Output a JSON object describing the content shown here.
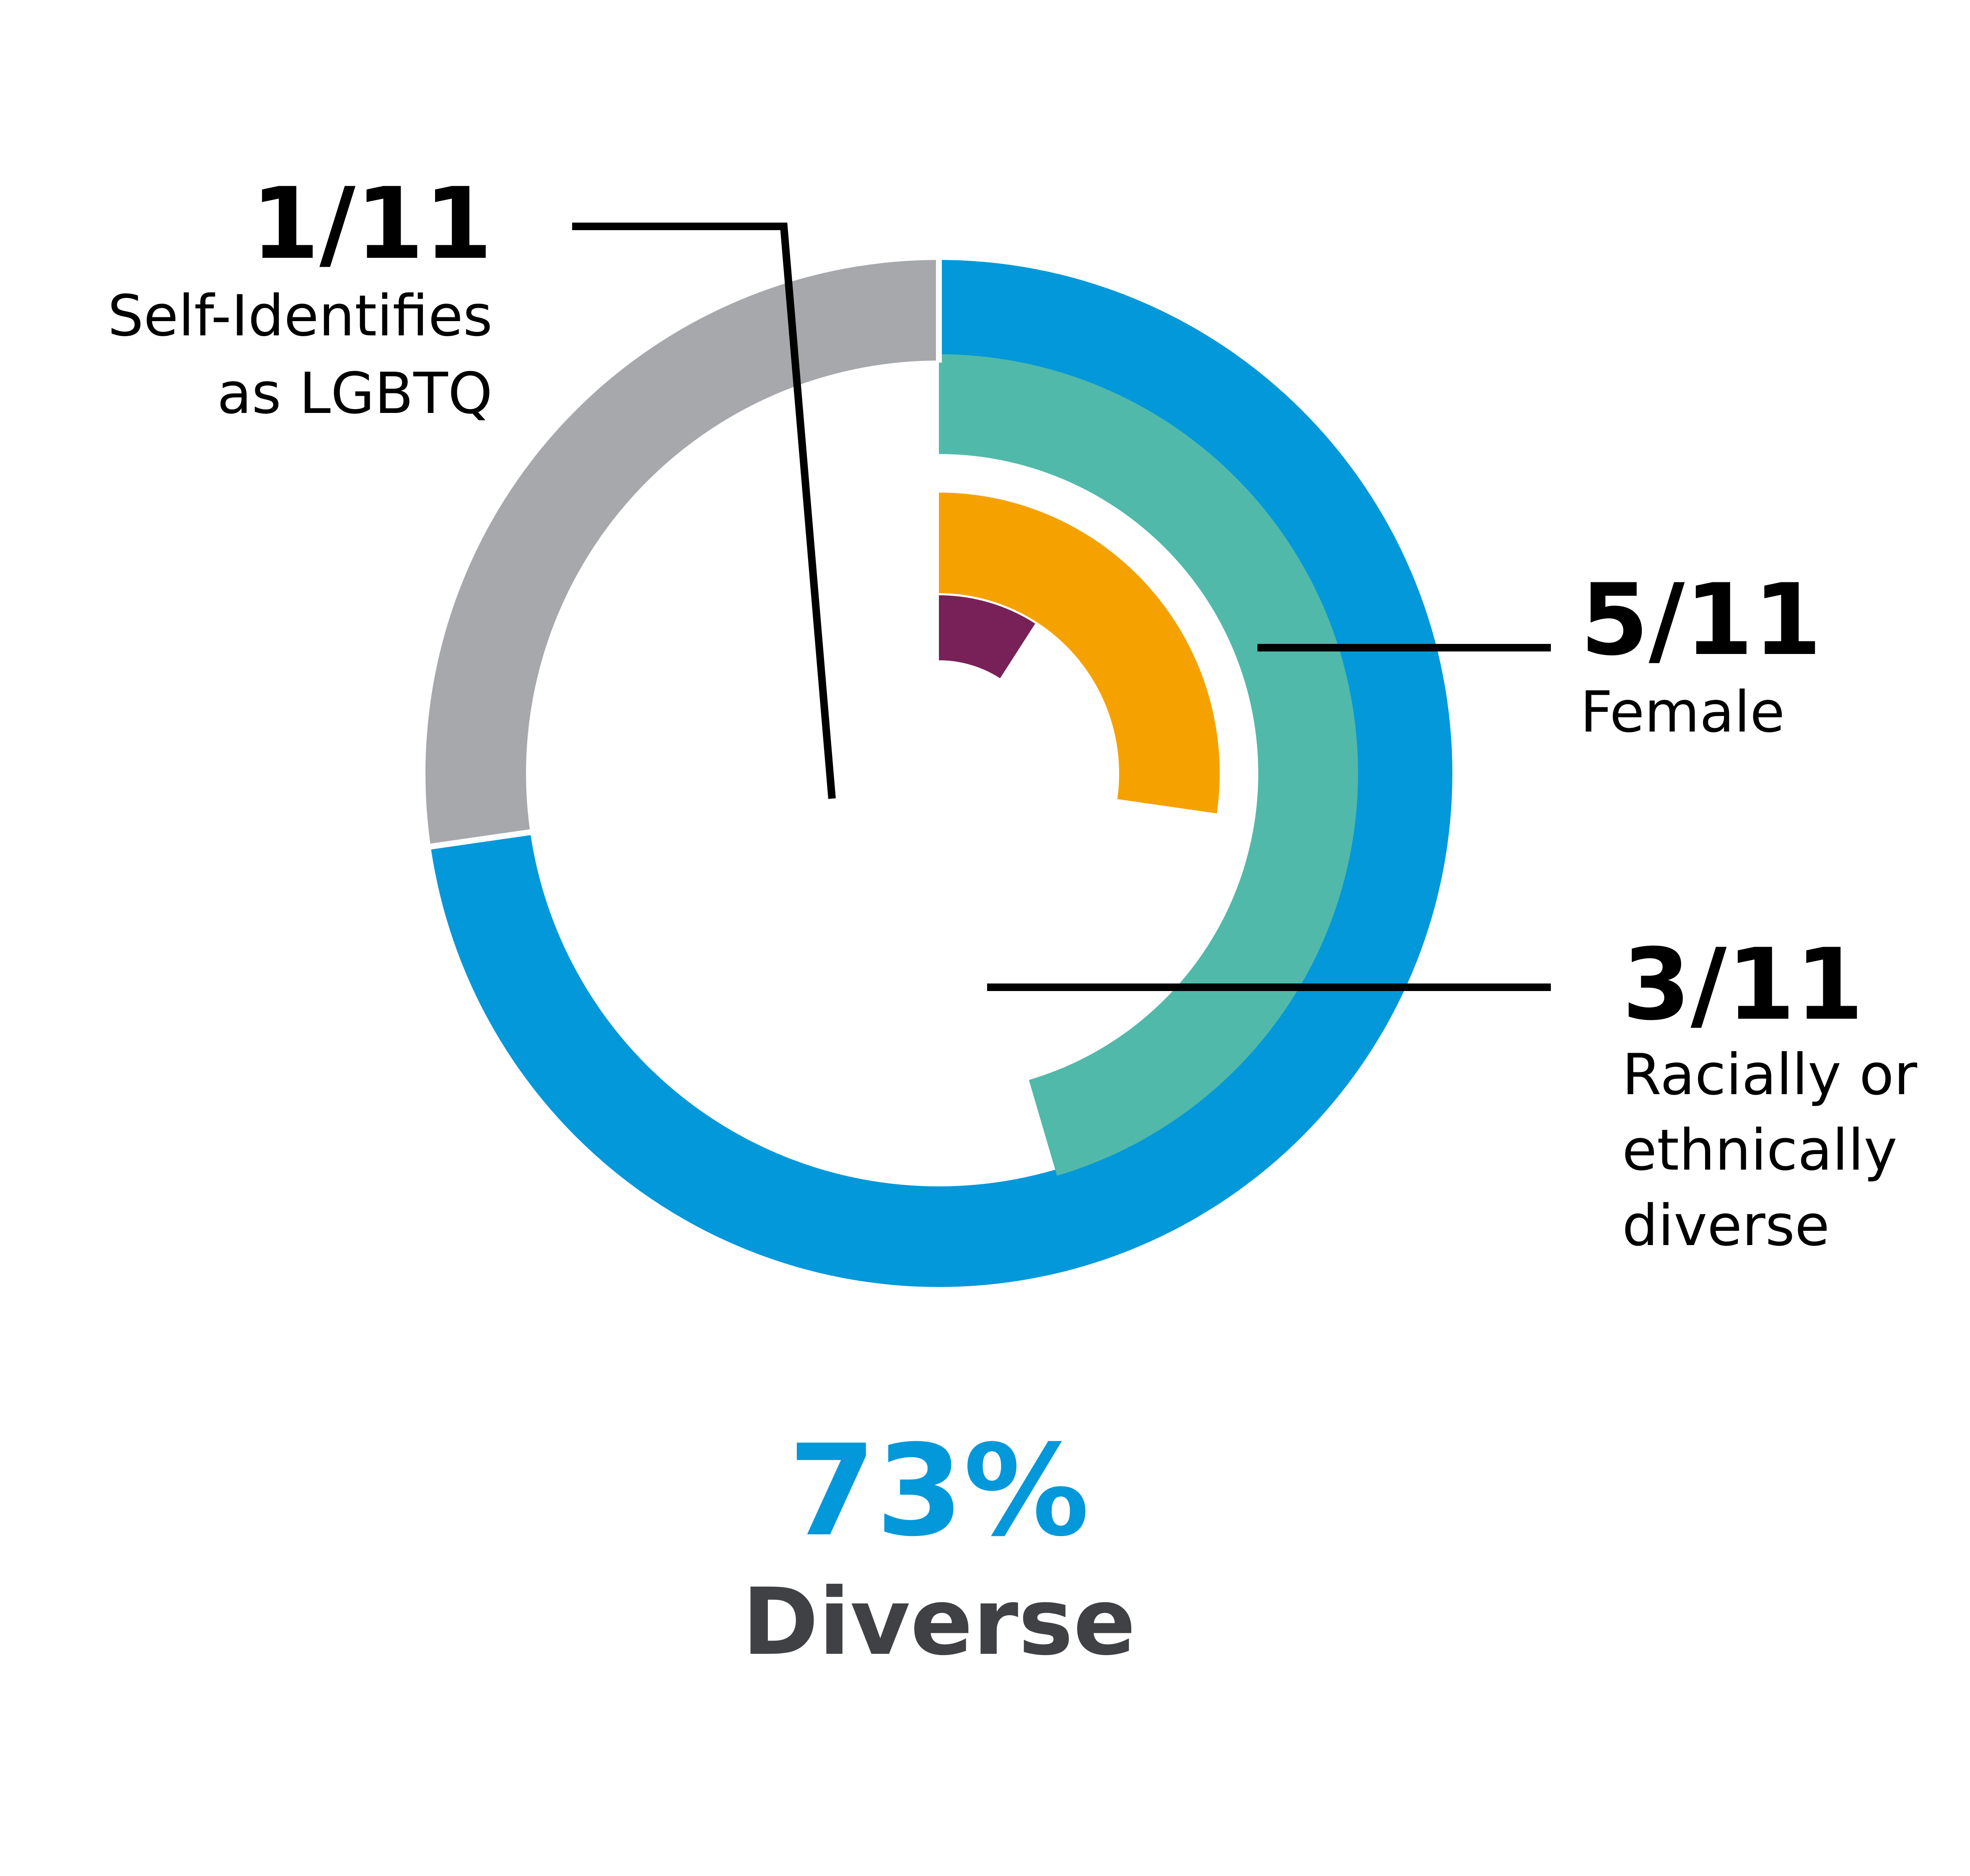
{
  "chart_data": {
    "type": "radial-bar",
    "total_members": 11,
    "rings": [
      {
        "name": "Diverse",
        "value": 8,
        "total": 11,
        "color": "#0398d9",
        "track_color": "#a6a8ab"
      },
      {
        "name": "Female",
        "value": 5,
        "total": 11,
        "color": "#51b9a9"
      },
      {
        "name": "Racially or ethnically diverse",
        "value": 3,
        "total": 11,
        "color": "#f5a201"
      },
      {
        "name": "Self-Identifies as LGBTQ",
        "value": 1,
        "total": 11,
        "color": "#782158"
      }
    ],
    "annotations": {
      "lgbtq": {
        "fraction": "1/11",
        "label_lines": [
          "Self-Identifies",
          "as LGBTQ"
        ]
      },
      "female": {
        "fraction": "5/11",
        "label_lines": [
          "Female"
        ]
      },
      "racial": {
        "fraction": "3/11",
        "label_lines": [
          "Racially or",
          "ethnically",
          "diverse"
        ]
      }
    },
    "summary": {
      "value": "73%",
      "label": "Diverse",
      "value_color": "#0398d9",
      "label_color": "#404145"
    }
  }
}
